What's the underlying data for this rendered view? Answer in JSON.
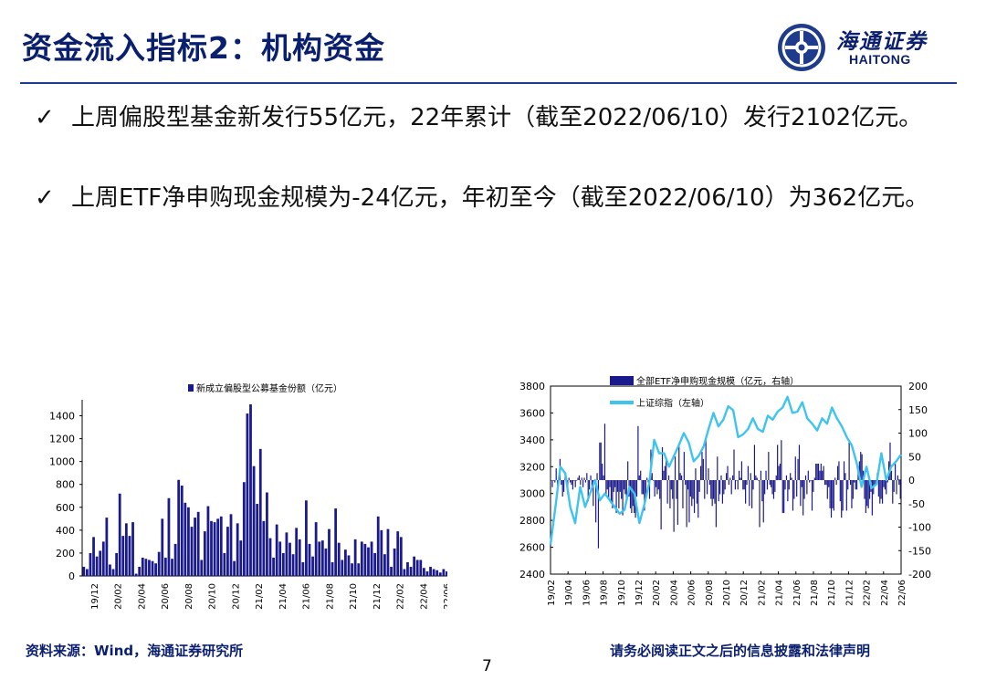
{
  "header": {
    "title": "资金流入指标2：机构资金",
    "logo_cn": "海通证券",
    "logo_en": "HAITONG"
  },
  "bullets": [
    {
      "mark": "✓",
      "text": "上周偏股型基金新发行55亿元，22年累计（截至2022/06/10）发行2102亿元。"
    },
    {
      "mark": "✓",
      "text": "上周ETF净申购现金规模为-24亿元，年初至今（截至2022/06/10）为362亿元。"
    }
  ],
  "footer": {
    "source": "资料来源：Wind，海通证券研究所",
    "disclaimer": "请务必阅读正文之后的信息披露和法律声明",
    "page": "7"
  },
  "colors": {
    "navy": "#0a1f6e",
    "bar": "#1a1a8c",
    "line": "#3ec4ee"
  },
  "chart_data": [
    {
      "type": "bar",
      "legend": "新成立偏股型公募基金份额（亿元）",
      "ylim": [
        0,
        1500
      ],
      "yticks": [
        0,
        200,
        400,
        600,
        800,
        1000,
        1200,
        1400
      ],
      "xticks": [
        "19/12",
        "20/02",
        "20/04",
        "20/06",
        "20/08",
        "20/10",
        "20/12",
        "21/02",
        "21/04",
        "21/06",
        "21/08",
        "21/10",
        "21/12",
        "22/02",
        "22/04",
        "22/06"
      ],
      "values": [
        80,
        60,
        200,
        340,
        170,
        220,
        300,
        510,
        100,
        60,
        200,
        720,
        350,
        460,
        350,
        470,
        20,
        80,
        160,
        150,
        140,
        130,
        110,
        210,
        500,
        160,
        680,
        150,
        280,
        840,
        790,
        640,
        600,
        430,
        510,
        560,
        140,
        390,
        610,
        480,
        470,
        500,
        520,
        200,
        430,
        540,
        130,
        460,
        310,
        820,
        1420,
        1500,
        960,
        630,
        1110,
        480,
        730,
        330,
        160,
        450,
        300,
        200,
        380,
        290,
        190,
        420,
        320,
        120,
        660,
        280,
        170,
        470,
        300,
        310,
        240,
        410,
        120,
        590,
        290,
        140,
        230,
        180,
        110,
        320,
        110,
        300,
        280,
        250,
        300,
        200,
        520,
        400,
        190,
        410,
        80,
        240,
        390,
        340,
        60,
        120,
        80,
        170,
        140,
        140,
        70,
        40,
        80,
        60,
        50,
        30,
        60,
        40,
        80,
        60,
        80
      ]
    },
    {
      "type": "bar+line",
      "series": [
        {
          "name": "全部ETF净申购现金规模（亿元，右轴）",
          "axis": "right",
          "values": [
            0,
            -15,
            0,
            -5,
            25,
            -20,
            5,
            45,
            -10,
            -35,
            -25,
            15,
            -5,
            -30,
            5,
            -5,
            -10,
            -20,
            0,
            -15,
            0,
            5,
            10,
            -10,
            5,
            -15,
            5,
            -5,
            15,
            -45,
            -20,
            10,
            -20,
            -55,
            0,
            -90,
            15,
            -145,
            80,
            80,
            35,
            10,
            120,
            -30,
            -20,
            -40,
            -15,
            -50,
            -60,
            -25,
            -15,
            -70,
            -25,
            -60,
            -25,
            -40,
            -75,
            -20,
            -30,
            -45,
            40,
            -35,
            -60,
            -70,
            -55,
            -70,
            -80,
            -35,
            115,
            10,
            20,
            -30,
            -30,
            -65,
            -45,
            5,
            -5,
            -40,
            65,
            15,
            0,
            -35,
            -15,
            -30,
            -20,
            -40,
            -105,
            70,
            20,
            30,
            45,
            -50,
            10,
            -60,
            -20,
            -40,
            -110,
            50,
            -40,
            -95,
            75,
            15,
            10,
            -60,
            60,
            -10,
            -100,
            -20,
            -90,
            -35,
            -55,
            -40,
            -70,
            25,
            -50,
            -80,
            -25,
            30,
            60,
            45,
            -40,
            90,
            -30,
            25,
            -10,
            -40,
            -55,
            -40,
            -50,
            -100,
            50,
            -45,
            -30,
            10,
            -50,
            -30,
            -20,
            15,
            30,
            -10,
            5,
            -30,
            10,
            65,
            -20,
            0,
            -20,
            20,
            5,
            40,
            -20,
            -20,
            -50,
            -10,
            30,
            -55,
            15,
            -60,
            -20,
            75,
            10,
            5,
            0,
            -100,
            20,
            -45,
            -90,
            -30,
            20,
            -20,
            60,
            -10,
            -15,
            -30,
            -40,
            -25,
            10,
            75,
            30,
            35,
            85,
            -70,
            -70,
            -20,
            10,
            -45,
            -20,
            15,
            5,
            -65,
            -40,
            50,
            -35,
            45,
            75,
            -55,
            -15,
            -75,
            -40,
            10,
            -30,
            20,
            -5,
            0,
            -65,
            -25,
            5,
            35,
            35,
            35,
            20,
            35,
            20,
            30,
            -10,
            -10,
            -40,
            -15,
            -60,
            -80,
            -60,
            -65,
            5,
            -10,
            30,
            40,
            -45,
            -80,
            -65,
            40,
            15,
            -65,
            -20,
            80,
            -10,
            -60,
            -40,
            -5,
            -20,
            -20,
            30,
            40,
            60,
            55,
            20,
            -40,
            -70,
            -55,
            -60,
            -40,
            -25,
            -75,
            -30,
            -10,
            -10,
            15,
            -35,
            -50,
            -40,
            -50,
            -15,
            -20,
            -30,
            -5,
            40,
            80,
            20,
            -50,
            -25,
            35,
            -30,
            10,
            -10,
            -40
          ]
        },
        {
          "name": "上证综指（左轴）",
          "axis": "left",
          "values": [
            2620,
            2900,
            3200,
            3150,
            2900,
            2780,
            3050,
            2900,
            3000,
            3100,
            2950,
            3000,
            2950,
            2900,
            2850,
            2880,
            3050,
            3000,
            2780,
            2920,
            3080,
            3400,
            3300,
            3300,
            3200,
            3280,
            3360,
            3450,
            3380,
            3240,
            3280,
            3350,
            3480,
            3600,
            3500,
            3550,
            3650,
            3620,
            3420,
            3440,
            3480,
            3560,
            3480,
            3460,
            3580,
            3550,
            3610,
            3640,
            3720,
            3600,
            3610,
            3680,
            3560,
            3520,
            3470,
            3560,
            3520,
            3640,
            3560,
            3500,
            3420,
            3360,
            3230,
            3050,
            3200,
            3040,
            3070,
            3300,
            3100,
            3200,
            3240,
            3290
          ]
        }
      ],
      "ylim_left": [
        2400,
        3800
      ],
      "ylim_right": [
        -200,
        200
      ],
      "yticks_left": [
        2400,
        2600,
        2800,
        3000,
        3200,
        3400,
        3600,
        3800
      ],
      "yticks_right": [
        -200,
        -150,
        -100,
        -50,
        0,
        50,
        100,
        150,
        200
      ],
      "xticks": [
        "19/02",
        "19/04",
        "19/06",
        "19/08",
        "19/10",
        "19/12",
        "20/02",
        "20/04",
        "20/06",
        "20/08",
        "20/10",
        "20/12",
        "21/02",
        "21/04",
        "21/06",
        "21/08",
        "21/10",
        "21/12",
        "22/02",
        "22/04",
        "22/06"
      ]
    }
  ]
}
